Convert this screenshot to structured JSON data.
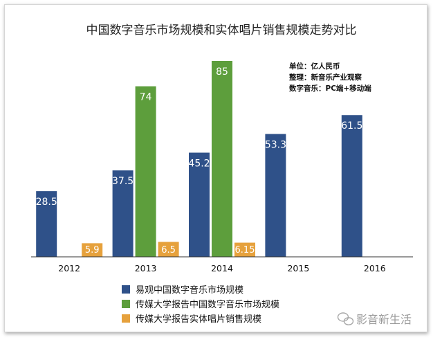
{
  "chart_data": {
    "type": "bar",
    "title": "中国数字音乐市场规模和实体唱片销售规模走势对比",
    "notes": [
      "单位：亿人民币",
      "整理：新音乐产业观察",
      "数字音乐：PC端+移动端"
    ],
    "categories": [
      "2012",
      "2013",
      "2014",
      "2015",
      "2016"
    ],
    "series": [
      {
        "name": "易观中国数字音乐市场规模",
        "color": "#2f5189",
        "values": [
          28.5,
          37.5,
          45.2,
          53.3,
          61.5
        ],
        "labels": [
          "28.5",
          "37.5",
          "45.2",
          "53.3",
          "61.5"
        ]
      },
      {
        "name": "传媒大学报告中国数字音乐市场规模",
        "color": "#5d9e3c",
        "values": [
          null,
          74,
          85,
          null,
          null
        ],
        "labels": [
          "",
          "74",
          "85",
          "",
          ""
        ]
      },
      {
        "name": "传媒大学报告实体唱片销售规模",
        "color": "#e6a13c",
        "values": [
          5.9,
          6.5,
          6.15,
          null,
          null
        ],
        "labels": [
          "5.9",
          "6.5",
          "6.15",
          "",
          ""
        ]
      }
    ],
    "ylim": [
      0,
      85
    ],
    "grid": false,
    "legend_position": "bottom-left"
  },
  "watermark": "影音新生活"
}
